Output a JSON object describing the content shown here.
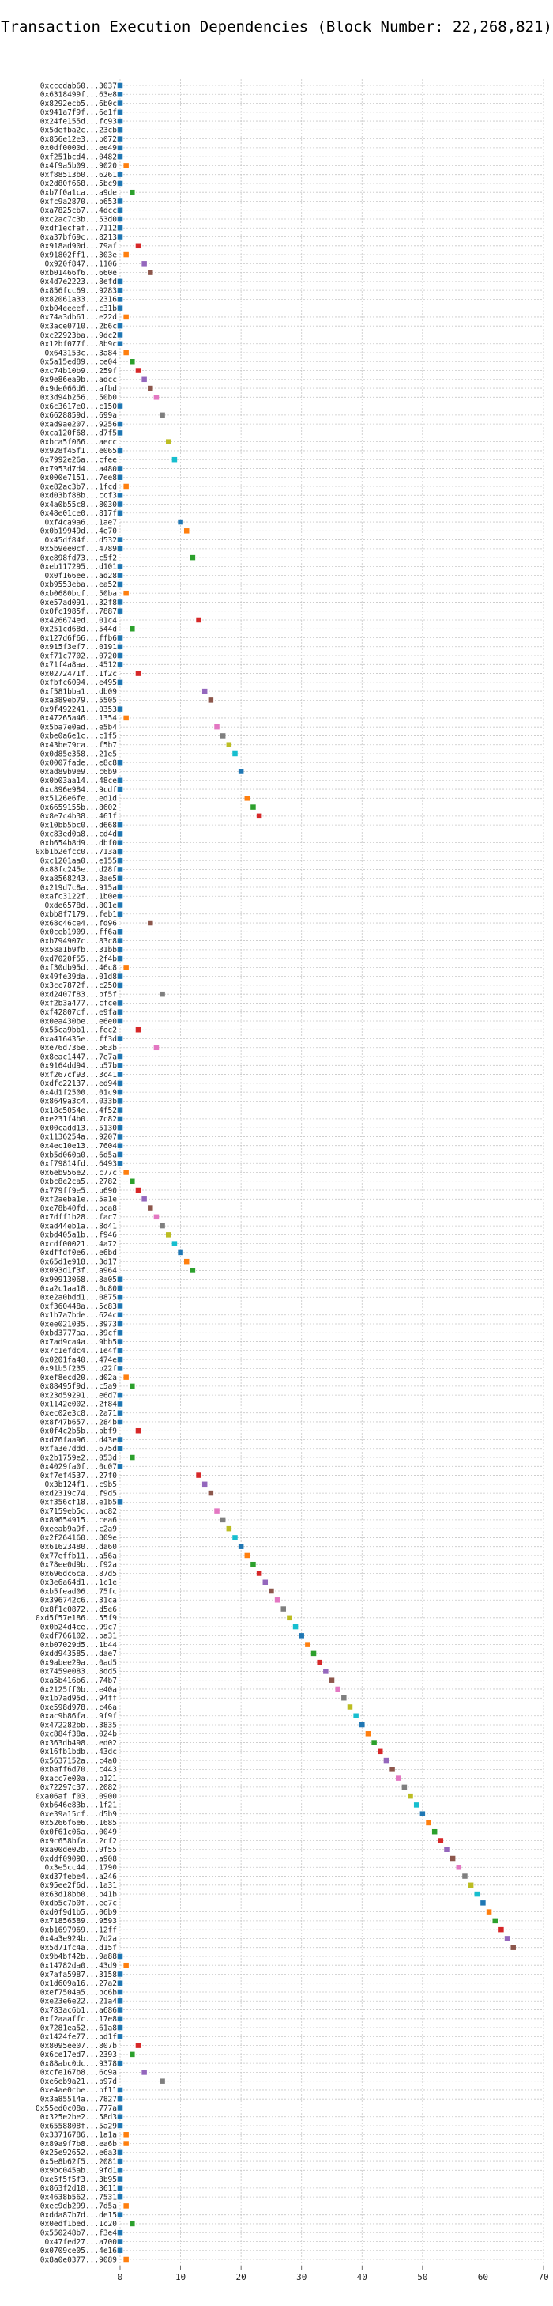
{
  "chart_data": {
    "type": "scatter",
    "title": "Transaction Execution Dependencies (Block Number: 22,268,821)",
    "xlabel": "",
    "ylabel": "",
    "xlim": [
      0,
      70
    ],
    "xticks": [
      0,
      10,
      20,
      30,
      40,
      50,
      60,
      70
    ],
    "grid": true,
    "palette": [
      "#1f77b4",
      "#ff7f0e",
      "#2ca02c",
      "#d62728",
      "#9467bd",
      "#8c564b",
      "#e377c2",
      "#7f7f7f",
      "#bcbd22",
      "#17becf"
    ],
    "transactions": [
      {
        "tx": "0xcccdab60...3037",
        "x": 0
      },
      {
        "tx": "0x6318499f...63e8",
        "x": 0
      },
      {
        "tx": "0x8292ecb5...6b0c",
        "x": 0
      },
      {
        "tx": "0x941a7f9f...6e1f",
        "x": 0
      },
      {
        "tx": "0x24fe155d...fc93",
        "x": 0
      },
      {
        "tx": "0x5defba2c...23cb",
        "x": 0
      },
      {
        "tx": "0x856e12e3...b072",
        "x": 0
      },
      {
        "tx": "0x0df0000d...ee49",
        "x": 0
      },
      {
        "tx": "0xf251bcd4...0482",
        "x": 0
      },
      {
        "tx": "0x4f9a5b09...9020",
        "x": 1
      },
      {
        "tx": "0xf88513b0...6261",
        "x": 0
      },
      {
        "tx": "0x2d80f668...5bc9",
        "x": 0
      },
      {
        "tx": "0xb7f0a1ca...a9de",
        "x": 2
      },
      {
        "tx": "0xfc9a2870...b653",
        "x": 0
      },
      {
        "tx": "0xa7825cb7...4dcc",
        "x": 0
      },
      {
        "tx": "0xc2ac7c3b...53d0",
        "x": 0
      },
      {
        "tx": "0xdf1ecfaf...7112",
        "x": 0
      },
      {
        "tx": "0xa37bf69c...8213",
        "x": 0
      },
      {
        "tx": "0x918ad90d...79af",
        "x": 3
      },
      {
        "tx": "0x91802ff1...303e",
        "x": 1
      },
      {
        "tx": "0x920f847...1106",
        "x": 4
      },
      {
        "tx": "0xb01466f6...660e",
        "x": 5
      },
      {
        "tx": "0x4d7e2223...8efd",
        "x": 0
      },
      {
        "tx": "0x856fcc69...9283",
        "x": 0
      },
      {
        "tx": "0x82061a33...2316",
        "x": 0
      },
      {
        "tx": "0xb04eeeef...c31b",
        "x": 0
      },
      {
        "tx": "0x74a3db61...e22d",
        "x": 1
      },
      {
        "tx": "0x3ace0710...2b6c",
        "x": 0
      },
      {
        "tx": "0xc22923ba...9dc2",
        "x": 0
      },
      {
        "tx": "0x12bf077f...8b9c",
        "x": 0
      },
      {
        "tx": "0x643153c...3a84",
        "x": 1
      },
      {
        "tx": "0x5a15ed89...ce04",
        "x": 2
      },
      {
        "tx": "0xc74b10b9...259f",
        "x": 3
      },
      {
        "tx": "0x9e86ea9b...adcc",
        "x": 4
      },
      {
        "tx": "0x9de066d6...afbd",
        "x": 5
      },
      {
        "tx": "0x3d94b256...50b0",
        "x": 6
      },
      {
        "tx": "0x6c3617e0...c150",
        "x": 0
      },
      {
        "tx": "0x6628859d...699a",
        "x": 7
      },
      {
        "tx": "0xad9ae207...9256",
        "x": 0
      },
      {
        "tx": "0xca120f68...d7f5",
        "x": 0
      },
      {
        "tx": "0xbca5f066...aecc",
        "x": 8
      },
      {
        "tx": "0x928f45f1...e065",
        "x": 0
      },
      {
        "tx": "0x7992e26a...cfee",
        "x": 9
      },
      {
        "tx": "0x7953d7d4...a480",
        "x": 0
      },
      {
        "tx": "0x000e7151...7ee8",
        "x": 0
      },
      {
        "tx": "0xe82ac3b7...1fcd",
        "x": 1
      },
      {
        "tx": "0xd03bf88b...ccf3",
        "x": 0
      },
      {
        "tx": "0x4a0b55c8...8030",
        "x": 0
      },
      {
        "tx": "0x48e01ce0...817f",
        "x": 0
      },
      {
        "tx": "0xf4ca9a6...1ae7",
        "x": 10
      },
      {
        "tx": "0x0b19949d...4e70",
        "x": 11
      },
      {
        "tx": "0x45df84f...d532",
        "x": 0
      },
      {
        "tx": "0x5b9ee0cf...4789",
        "x": 0
      },
      {
        "tx": "0xe898fd73...c5f2",
        "x": 12
      },
      {
        "tx": "0xeb117295...d101",
        "x": 0
      },
      {
        "tx": "0x0f166ee...ad28",
        "x": 0
      },
      {
        "tx": "0xb9553eba...ea52",
        "x": 0
      },
      {
        "tx": "0xb0680bcf...50ba",
        "x": 1
      },
      {
        "tx": "0xe57ad091...32f8",
        "x": 0
      },
      {
        "tx": "0x0fc1985f...7887",
        "x": 0
      },
      {
        "tx": "0x426674ed...01c4",
        "x": 13
      },
      {
        "tx": "0x251cd68d...544d",
        "x": 2
      },
      {
        "tx": "0x127d6f66...ffb6",
        "x": 0
      },
      {
        "tx": "0x915f3ef7...0191",
        "x": 0
      },
      {
        "tx": "0xf71c7702...0720",
        "x": 0
      },
      {
        "tx": "0x71f4a8aa...4512",
        "x": 0
      },
      {
        "tx": "0x0272471f...1f2c",
        "x": 3
      },
      {
        "tx": "0xfbfc6094...e495",
        "x": 0
      },
      {
        "tx": "0xf581bba1...db09",
        "x": 14
      },
      {
        "tx": "0xa389eb79...5505",
        "x": 15
      },
      {
        "tx": "0x9f492241...0353",
        "x": 0
      },
      {
        "tx": "0x47265a46...1354",
        "x": 1
      },
      {
        "tx": "0x5ba7e0ad...e5b4",
        "x": 16
      },
      {
        "tx": "0xbe0a6e1c...c1f5",
        "x": 17
      },
      {
        "tx": "0x43be79ca...f5b7",
        "x": 18
      },
      {
        "tx": "0x0d85e358...21e5",
        "x": 19
      },
      {
        "tx": "0x0007fade...e8c8",
        "x": 0
      },
      {
        "tx": "0xad89b9e9...c6b9",
        "x": 20
      },
      {
        "tx": "0x0b03aa14...48ce",
        "x": 0
      },
      {
        "tx": "0xc896e984...9cdf",
        "x": 0
      },
      {
        "tx": "0x5126e6fe...ed1d",
        "x": 21
      },
      {
        "tx": "0x6659155b...8602",
        "x": 22
      },
      {
        "tx": "0x8e7c4b38...461f",
        "x": 23
      },
      {
        "tx": "0x10bb5bc0...d668",
        "x": 0
      },
      {
        "tx": "0xc83ed0a8...cd4d",
        "x": 0
      },
      {
        "tx": "0xb654b8d9...dbf0",
        "x": 0
      },
      {
        "tx": "0xb1b2efcc0...713a",
        "x": 0
      },
      {
        "tx": "0xc1201aa0...e155",
        "x": 0
      },
      {
        "tx": "0x88fc245e...d28f",
        "x": 0
      },
      {
        "tx": "0xa8568243...8ae5",
        "x": 0
      },
      {
        "tx": "0x219d7c8a...915a",
        "x": 0
      },
      {
        "tx": "0xafc3122f...1b0e",
        "x": 0
      },
      {
        "tx": "0xde6578d...801e",
        "x": 0
      },
      {
        "tx": "0xbb8f7179...feb1",
        "x": 0
      },
      {
        "tx": "0x68c46ce4...fd96",
        "x": 5
      },
      {
        "tx": "0x0ceb1909...ff6a",
        "x": 0
      },
      {
        "tx": "0xb794907c...83c8",
        "x": 0
      },
      {
        "tx": "0x58a1b9fb...31bb",
        "x": 0
      },
      {
        "tx": "0xd7020f55...2f4b",
        "x": 0
      },
      {
        "tx": "0xf30db95d...46c8",
        "x": 1
      },
      {
        "tx": "0x49fe39da...01d8",
        "x": 0
      },
      {
        "tx": "0x3cc7872f...c250",
        "x": 0
      },
      {
        "tx": "0xd2407f83...bf5f",
        "x": 7
      },
      {
        "tx": "0xf2b3a477...cfce",
        "x": 0
      },
      {
        "tx": "0xf42807cf...e9fa",
        "x": 0
      },
      {
        "tx": "0x0ea430be...e6e0",
        "x": 0
      },
      {
        "tx": "0x55ca9bb1...fec2",
        "x": 3
      },
      {
        "tx": "0xa416435e...ff3d",
        "x": 0
      },
      {
        "tx": "0xe76d736e...563b",
        "x": 6
      },
      {
        "tx": "0x8eac1447...7e7a",
        "x": 0
      },
      {
        "tx": "0x9164dd94...b57b",
        "x": 0
      },
      {
        "tx": "0xf267cf93...3c41",
        "x": 0
      },
      {
        "tx": "0xdfc22137...ed94",
        "x": 0
      },
      {
        "tx": "0x4d1f2500...01c9",
        "x": 0
      },
      {
        "tx": "0x8649a3c4...033b",
        "x": 0
      },
      {
        "tx": "0x18c5054e...4f52",
        "x": 0
      },
      {
        "tx": "0xe231f4b0...7c82",
        "x": 0
      },
      {
        "tx": "0x00cadd13...5130",
        "x": 0
      },
      {
        "tx": "0x1136254a...9207",
        "x": 0
      },
      {
        "tx": "0x4ec10e13...7604",
        "x": 0
      },
      {
        "tx": "0xb5d060a0...6d5a",
        "x": 0
      },
      {
        "tx": "0xf79814fd...6493",
        "x": 0
      },
      {
        "tx": "0x6eb956e2...c77c",
        "x": 1
      },
      {
        "tx": "0xbc8e2ca5...2782",
        "x": 2
      },
      {
        "tx": "0x779ff9e5...b690",
        "x": 3
      },
      {
        "tx": "0xf2aeba1e...5a1e",
        "x": 4
      },
      {
        "tx": "0xe78b40fd...bca8",
        "x": 5
      },
      {
        "tx": "0x7dff1b28...fac7",
        "x": 6
      },
      {
        "tx": "0xad44eb1a...8d41",
        "x": 7
      },
      {
        "tx": "0xbd405a1b...f946",
        "x": 8
      },
      {
        "tx": "0xcdf00021...4a72",
        "x": 9
      },
      {
        "tx": "0xdffdf0e6...e6bd",
        "x": 10
      },
      {
        "tx": "0x65d1e918...3d17",
        "x": 11
      },
      {
        "tx": "0x093d1f3f...a964",
        "x": 12
      },
      {
        "tx": "0x90913068...8a05",
        "x": 0
      },
      {
        "tx": "0xa2c1aa18...0c80",
        "x": 0
      },
      {
        "tx": "0xe2a0bdd1...0875",
        "x": 0
      },
      {
        "tx": "0xf360448a...5c83",
        "x": 0
      },
      {
        "tx": "0x1b7a7bde...624c",
        "x": 0
      },
      {
        "tx": "0xee021035...3973",
        "x": 0
      },
      {
        "tx": "0xbd3777aa...39cf",
        "x": 0
      },
      {
        "tx": "0x7ad9ca4a...9bb5",
        "x": 0
      },
      {
        "tx": "0x7c1efdc4...1e4f",
        "x": 0
      },
      {
        "tx": "0x0201fa40...474e",
        "x": 0
      },
      {
        "tx": "0x91b5f235...b22f",
        "x": 0
      },
      {
        "tx": "0xef8ecd20...d02a",
        "x": 1
      },
      {
        "tx": "0x88495f9d...c5a9",
        "x": 2
      },
      {
        "tx": "0x23d59291...e6d7",
        "x": 0
      },
      {
        "tx": "0x1142e002...2f84",
        "x": 0
      },
      {
        "tx": "0xec02e3c8...2a71",
        "x": 0
      },
      {
        "tx": "0x8f47b657...284b",
        "x": 0
      },
      {
        "tx": "0x0f4c2b5b...bbf9",
        "x": 3
      },
      {
        "tx": "0xd76faa96...d43e",
        "x": 0
      },
      {
        "tx": "0xfa3e7ddd...675d",
        "x": 0
      },
      {
        "tx": "0x2b1759e2...053d",
        "x": 2
      },
      {
        "tx": "0x4029fa0f...0c07",
        "x": 0
      },
      {
        "tx": "0xf7ef4537...27f0",
        "x": 13
      },
      {
        "tx": "0x3b124f1...c9b5",
        "x": 14
      },
      {
        "tx": "0xd2319c74...f9d5",
        "x": 15
      },
      {
        "tx": "0xf356cf18...e1b5",
        "x": 0
      },
      {
        "tx": "0x7159eb5c...ac82",
        "x": 16
      },
      {
        "tx": "0x89654915...cea6",
        "x": 17
      },
      {
        "tx": "0xeeab9a9f...c2a9",
        "x": 18
      },
      {
        "tx": "0x2f264160...809e",
        "x": 19
      },
      {
        "tx": "0x61623480...da60",
        "x": 20
      },
      {
        "tx": "0x77effb11...a56a",
        "x": 21
      },
      {
        "tx": "0x78ee0d9b...f92a",
        "x": 22
      },
      {
        "tx": "0x696dc6ca...87d5",
        "x": 23
      },
      {
        "tx": "0x3e6a64d1...1c1e",
        "x": 24
      },
      {
        "tx": "0xb5fead06...75fc",
        "x": 25
      },
      {
        "tx": "0x396742c6...31ca",
        "x": 26
      },
      {
        "tx": "0x8f1c0872...d5e6",
        "x": 27
      },
      {
        "tx": "0xd5f57e186...55f9",
        "x": 28
      },
      {
        "tx": "0x0b24d4ce...99c7",
        "x": 29
      },
      {
        "tx": "0xdf766102...ba31",
        "x": 30
      },
      {
        "tx": "0xb07029d5...1b44",
        "x": 31
      },
      {
        "tx": "0xdd943585...dae7",
        "x": 32
      },
      {
        "tx": "0x9abee29a...0ad5",
        "x": 33
      },
      {
        "tx": "0x7459e083...8dd5",
        "x": 34
      },
      {
        "tx": "0xa5b416b6...74b7",
        "x": 35
      },
      {
        "tx": "0x2125ff0b...e40a",
        "x": 36
      },
      {
        "tx": "0x1b7ad95d...94ff",
        "x": 37
      },
      {
        "tx": "0xe598d978...c46a",
        "x": 38
      },
      {
        "tx": "0xac9b86fa...9f9f",
        "x": 39
      },
      {
        "tx": "0x472282bb...3835",
        "x": 40
      },
      {
        "tx": "0xc884f38a...024b",
        "x": 41
      },
      {
        "tx": "0x363db498...ed02",
        "x": 42
      },
      {
        "tx": "0x16fb1bdb...43dc",
        "x": 43
      },
      {
        "tx": "0x5637152a...c4a0",
        "x": 44
      },
      {
        "tx": "0xbaff6d70...c443",
        "x": 45
      },
      {
        "tx": "0xacc7e00a...b121",
        "x": 46
      },
      {
        "tx": "0x72297c37...2082",
        "x": 47
      },
      {
        "tx": "0xa06af f03...0900",
        "x": 48
      },
      {
        "tx": "0xb646e83b...1f21",
        "x": 49
      },
      {
        "tx": "0xe39a15cf...d5b9",
        "x": 50
      },
      {
        "tx": "0x5266f6e6...1685",
        "x": 51
      },
      {
        "tx": "0x0f61c06a...0049",
        "x": 52
      },
      {
        "tx": "0x9c658bfa...2cf2",
        "x": 53
      },
      {
        "tx": "0xa00de02b...9f55",
        "x": 54
      },
      {
        "tx": "0xddf09098...a908",
        "x": 55
      },
      {
        "tx": "0x3e5cc44...1790",
        "x": 56
      },
      {
        "tx": "0xd37febe4...a246",
        "x": 57
      },
      {
        "tx": "0x95ee2f6d...1a31",
        "x": 58
      },
      {
        "tx": "0x63d18bb0...b41b",
        "x": 59
      },
      {
        "tx": "0xdb5c7b0f...ee7c",
        "x": 60
      },
      {
        "tx": "0xd0f9d1b5...06b9",
        "x": 61
      },
      {
        "tx": "0x71856589...9593",
        "x": 62
      },
      {
        "tx": "0xb1697969...12ff",
        "x": 63
      },
      {
        "tx": "0x4a3e924b...7d2a",
        "x": 64
      },
      {
        "tx": "0x5d71fc4a...d15f",
        "x": 65
      },
      {
        "tx": "0x9b4bf42b...9a88",
        "x": 0
      },
      {
        "tx": "0x14782da0...43d9",
        "x": 1
      },
      {
        "tx": "0x7afa5987...3158",
        "x": 0
      },
      {
        "tx": "0x1d609a16...27a2",
        "x": 0
      },
      {
        "tx": "0xef7504a5...bc6b",
        "x": 0
      },
      {
        "tx": "0xe23e6e22...21a4",
        "x": 0
      },
      {
        "tx": "0x783ac6b1...a686",
        "x": 0
      },
      {
        "tx": "0xf2aaaffc...17e8",
        "x": 0
      },
      {
        "tx": "0x7281ea52...61a8",
        "x": 0
      },
      {
        "tx": "0x1424fe77...bd1f",
        "x": 0
      },
      {
        "tx": "0x8095ee07...807b",
        "x": 3
      },
      {
        "tx": "0x6ce17ed7...2393",
        "x": 2
      },
      {
        "tx": "0x88abc0dc...9378",
        "x": 0
      },
      {
        "tx": "0xcfe167b8...6c9a",
        "x": 4
      },
      {
        "tx": "0xe6eb9a21...b97d",
        "x": 7
      },
      {
        "tx": "0xe4ae0cbe...bf11",
        "x": 0
      },
      {
        "tx": "0x3a85514a...7827",
        "x": 0
      },
      {
        "tx": "0x55ed0c08a...777a",
        "x": 0
      },
      {
        "tx": "0x325e2be2...58d3",
        "x": 0
      },
      {
        "tx": "0x6558808f...5a29",
        "x": 0
      },
      {
        "tx": "0x33716786...1a1a",
        "x": 1
      },
      {
        "tx": "0x89a9f7b8...ea6b",
        "x": 1
      },
      {
        "tx": "0x25e92652...e6a3",
        "x": 0
      },
      {
        "tx": "0x5e8b62f5...2081",
        "x": 0
      },
      {
        "tx": "0x9bc045ab...9fd1",
        "x": 0
      },
      {
        "tx": "0xe5f5f5f3...3b95",
        "x": 0
      },
      {
        "tx": "0x863f2d18...3611",
        "x": 0
      },
      {
        "tx": "0x4638b562...7531",
        "x": 0
      },
      {
        "tx": "0xec9db299...7d5a",
        "x": 1
      },
      {
        "tx": "0xdda87b7d...de15",
        "x": 0
      },
      {
        "tx": "0x0edf1bed...1c20",
        "x": 2
      },
      {
        "tx": "0x550248b7...f3e4",
        "x": 0
      },
      {
        "tx": "0x47fed27...a700",
        "x": 0
      },
      {
        "tx": "0x0709ce05...4e16",
        "x": 0
      },
      {
        "tx": "0x8a0e0377...9089",
        "x": 1
      }
    ]
  }
}
